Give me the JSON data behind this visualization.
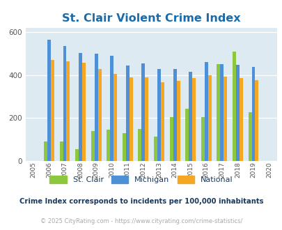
{
  "title": "St. Clair Violent Crime Index",
  "years": [
    2005,
    2006,
    2007,
    2008,
    2009,
    2010,
    2011,
    2012,
    2013,
    2014,
    2015,
    2016,
    2017,
    2018,
    2019,
    2020
  ],
  "st_clair": [
    0,
    90,
    90,
    55,
    140,
    145,
    130,
    148,
    112,
    205,
    243,
    204,
    450,
    510,
    228,
    0
  ],
  "michigan": [
    0,
    565,
    535,
    502,
    498,
    490,
    445,
    455,
    428,
    428,
    414,
    460,
    451,
    448,
    436,
    0
  ],
  "national": [
    0,
    470,
    464,
    456,
    428,
    404,
    388,
    388,
    366,
    374,
    384,
    398,
    393,
    384,
    377,
    0
  ],
  "bar_width": 0.22,
  "colors": {
    "st_clair": "#8dc63f",
    "michigan": "#4d90d5",
    "national": "#f5a623"
  },
  "bg_color": "#deeaf1",
  "ylim": [
    0,
    620
  ],
  "yticks": [
    0,
    200,
    400,
    600
  ],
  "title_color": "#1a6baa",
  "title_fontsize": 11.5,
  "legend_labels": [
    "St. Clair",
    "Michigan",
    "National"
  ],
  "footnote1": "Crime Index corresponds to incidents per 100,000 inhabitants",
  "footnote2": "© 2025 CityRating.com - https://www.cityrating.com/crime-statistics/",
  "footnote1_color": "#1a3a5c",
  "footnote2_color": "#aaaaaa"
}
